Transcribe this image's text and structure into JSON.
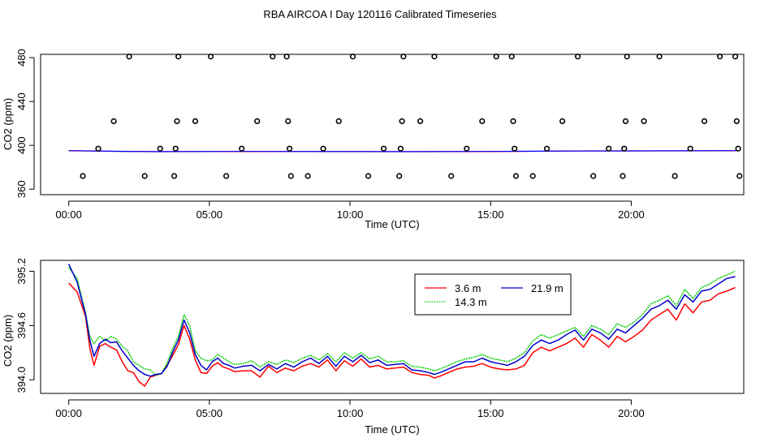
{
  "title": "RBA AIRCOA I  Day 120116  Calibrated Timeseries",
  "chart_data": [
    {
      "type": "scatter",
      "ylabel": "CO2 (ppm)",
      "xlabel": "Time (UTC)",
      "xlim": [
        -1,
        24
      ],
      "ylim": [
        355,
        483
      ],
      "yticks": [
        360,
        400,
        440,
        480
      ],
      "xticks": [
        0,
        5,
        10,
        15,
        20
      ],
      "xtick_labels": [
        "00:00",
        "05:00",
        "10:00",
        "15:00",
        "20:00"
      ],
      "cal_points": [
        {
          "x": 0.5,
          "y": 372
        },
        {
          "x": 1.05,
          "y": 397
        },
        {
          "x": 1.6,
          "y": 422
        },
        {
          "x": 2.15,
          "y": 481
        },
        {
          "x": 2.7,
          "y": 372
        },
        {
          "x": 3.25,
          "y": 397
        },
        {
          "x": 3.75,
          "y": 372
        },
        {
          "x": 3.8,
          "y": 397
        },
        {
          "x": 3.85,
          "y": 422
        },
        {
          "x": 3.9,
          "y": 481
        },
        {
          "x": 4.5,
          "y": 422
        },
        {
          "x": 5.05,
          "y": 481
        },
        {
          "x": 5.6,
          "y": 372
        },
        {
          "x": 6.15,
          "y": 397
        },
        {
          "x": 6.7,
          "y": 422
        },
        {
          "x": 7.25,
          "y": 481
        },
        {
          "x": 7.75,
          "y": 481
        },
        {
          "x": 7.8,
          "y": 422
        },
        {
          "x": 7.85,
          "y": 397
        },
        {
          "x": 7.9,
          "y": 372
        },
        {
          "x": 8.5,
          "y": 372
        },
        {
          "x": 9.05,
          "y": 397
        },
        {
          "x": 9.6,
          "y": 422
        },
        {
          "x": 10.1,
          "y": 481
        },
        {
          "x": 10.65,
          "y": 372
        },
        {
          "x": 11.2,
          "y": 397
        },
        {
          "x": 11.75,
          "y": 372
        },
        {
          "x": 11.8,
          "y": 397
        },
        {
          "x": 11.85,
          "y": 422
        },
        {
          "x": 11.9,
          "y": 481
        },
        {
          "x": 12.5,
          "y": 422
        },
        {
          "x": 13.0,
          "y": 481
        },
        {
          "x": 13.6,
          "y": 372
        },
        {
          "x": 14.15,
          "y": 397
        },
        {
          "x": 14.7,
          "y": 422
        },
        {
          "x": 15.2,
          "y": 481
        },
        {
          "x": 15.75,
          "y": 481
        },
        {
          "x": 15.8,
          "y": 422
        },
        {
          "x": 15.85,
          "y": 397
        },
        {
          "x": 15.9,
          "y": 372
        },
        {
          "x": 16.5,
          "y": 372
        },
        {
          "x": 17.0,
          "y": 397
        },
        {
          "x": 17.55,
          "y": 422
        },
        {
          "x": 18.1,
          "y": 481
        },
        {
          "x": 18.65,
          "y": 372
        },
        {
          "x": 19.2,
          "y": 397
        },
        {
          "x": 19.7,
          "y": 372
        },
        {
          "x": 19.75,
          "y": 397
        },
        {
          "x": 19.8,
          "y": 422
        },
        {
          "x": 19.85,
          "y": 481
        },
        {
          "x": 20.45,
          "y": 422
        },
        {
          "x": 21.0,
          "y": 481
        },
        {
          "x": 21.55,
          "y": 372
        },
        {
          "x": 22.1,
          "y": 397
        },
        {
          "x": 22.6,
          "y": 422
        },
        {
          "x": 23.15,
          "y": 481
        },
        {
          "x": 23.7,
          "y": 481
        },
        {
          "x": 23.75,
          "y": 422
        },
        {
          "x": 23.8,
          "y": 397
        },
        {
          "x": 23.85,
          "y": 372
        }
      ],
      "series": [
        {
          "name": "3.6 m",
          "color": "#ff0000",
          "x": [
            0,
            2,
            3,
            6,
            12,
            15,
            18,
            23.8
          ],
          "values": [
            395,
            394.4,
            394.2,
            394.3,
            394.2,
            394.3,
            394.8,
            395.0
          ]
        },
        {
          "name": "21.9 m",
          "color": "#0000ff",
          "x": [
            0,
            2,
            3,
            6,
            12,
            15,
            18,
            23.8
          ],
          "values": [
            395.2,
            394.5,
            394.3,
            394.4,
            394.3,
            394.4,
            394.9,
            395.2
          ]
        }
      ]
    },
    {
      "type": "line",
      "ylabel": "CO2 (ppm)",
      "xlabel": "Time (UTC)",
      "xlim": [
        -1,
        24
      ],
      "ylim": [
        393.85,
        395.32
      ],
      "yticks": [
        394.0,
        394.6,
        395.2
      ],
      "ytick_labels": [
        "394.0",
        "394.6",
        "395.2"
      ],
      "xticks": [
        0,
        5,
        10,
        15,
        20
      ],
      "xtick_labels": [
        "00:00",
        "05:00",
        "10:00",
        "15:00",
        "20:00"
      ],
      "legend_position": "top-right",
      "x": [
        0,
        0.3,
        0.6,
        0.75,
        0.9,
        1.1,
        1.3,
        1.5,
        1.7,
        1.9,
        2.1,
        2.3,
        2.5,
        2.7,
        2.9,
        3.1,
        3.3,
        3.5,
        3.7,
        3.9,
        4.1,
        4.3,
        4.5,
        4.7,
        4.9,
        5.1,
        5.3,
        5.5,
        5.7,
        5.9,
        6.2,
        6.5,
        6.8,
        7.1,
        7.4,
        7.7,
        8.0,
        8.3,
        8.6,
        8.9,
        9.2,
        9.5,
        9.8,
        10.1,
        10.4,
        10.7,
        11.0,
        11.3,
        11.6,
        11.9,
        12.2,
        12.5,
        12.8,
        13.0,
        13.2,
        13.5,
        13.8,
        14.1,
        14.4,
        14.7,
        15.0,
        15.3,
        15.6,
        15.9,
        16.2,
        16.5,
        16.8,
        17.1,
        17.4,
        17.7,
        18.0,
        18.3,
        18.6,
        18.9,
        19.2,
        19.5,
        19.8,
        20.1,
        20.4,
        20.7,
        21.0,
        21.3,
        21.6,
        21.9,
        22.2,
        22.5,
        22.8,
        23.1,
        23.4,
        23.7
      ],
      "series": [
        {
          "name": "3.6 m",
          "color": "#ff0000",
          "values": [
            395.07,
            394.97,
            394.7,
            394.35,
            394.16,
            394.37,
            394.4,
            394.36,
            394.33,
            394.2,
            394.1,
            394.08,
            393.98,
            393.93,
            394.03,
            394.05,
            394.07,
            394.16,
            394.27,
            394.39,
            394.6,
            394.45,
            394.22,
            394.08,
            394.07,
            394.15,
            394.19,
            394.14,
            394.12,
            394.09,
            394.1,
            394.1,
            394.03,
            394.15,
            394.08,
            394.13,
            394.1,
            394.15,
            394.18,
            394.14,
            394.22,
            394.1,
            394.21,
            394.15,
            394.23,
            394.14,
            394.16,
            394.12,
            394.13,
            394.14,
            394.08,
            394.06,
            394.05,
            394.02,
            394.04,
            394.08,
            394.12,
            394.14,
            394.15,
            394.18,
            394.14,
            394.12,
            394.11,
            394.12,
            394.16,
            394.3,
            394.36,
            394.32,
            394.36,
            394.4,
            394.46,
            394.36,
            394.5,
            394.44,
            394.36,
            394.48,
            394.42,
            394.48,
            394.55,
            394.66,
            394.72,
            394.78,
            394.66,
            394.84,
            394.74,
            394.86,
            394.88,
            394.95,
            394.98,
            395.02
          ]
        },
        {
          "name": "14.3 m",
          "color": "#00cc00",
          "values": [
            395.24,
            395.12,
            394.74,
            394.48,
            394.4,
            394.48,
            394.43,
            394.48,
            394.45,
            394.37,
            394.32,
            394.2,
            394.16,
            394.12,
            394.11,
            394.05,
            394.07,
            394.19,
            394.35,
            394.48,
            394.72,
            394.6,
            394.32,
            394.24,
            394.21,
            394.22,
            394.28,
            394.24,
            394.2,
            394.17,
            394.18,
            394.21,
            394.14,
            394.2,
            394.17,
            394.22,
            394.19,
            394.24,
            394.27,
            394.22,
            394.29,
            394.2,
            394.3,
            394.24,
            394.3,
            394.23,
            394.26,
            394.2,
            394.2,
            394.21,
            394.15,
            394.14,
            394.12,
            394.1,
            394.12,
            394.16,
            394.2,
            394.23,
            394.25,
            394.28,
            394.24,
            394.22,
            394.2,
            394.24,
            394.3,
            394.43,
            394.5,
            394.46,
            394.5,
            394.54,
            394.58,
            394.48,
            394.6,
            394.56,
            394.5,
            394.62,
            394.58,
            394.64,
            394.72,
            394.84,
            394.88,
            394.93,
            394.82,
            395.0,
            394.9,
            395.02,
            395.06,
            395.12,
            395.16,
            395.2
          ]
        },
        {
          "name": "21.9 m",
          "color": "#0000cc",
          "values": [
            395.28,
            395.08,
            394.72,
            394.44,
            394.26,
            394.4,
            394.45,
            394.41,
            394.42,
            394.32,
            394.24,
            394.16,
            394.1,
            394.06,
            394.04,
            394.06,
            394.07,
            394.15,
            394.31,
            394.44,
            394.66,
            394.52,
            394.28,
            394.16,
            394.11,
            394.2,
            394.24,
            394.18,
            394.16,
            394.13,
            394.15,
            394.16,
            394.1,
            394.17,
            394.12,
            394.18,
            394.14,
            394.2,
            394.24,
            394.18,
            394.26,
            394.15,
            394.26,
            394.2,
            394.27,
            394.19,
            394.22,
            394.16,
            394.17,
            394.18,
            394.11,
            394.1,
            394.08,
            394.06,
            394.08,
            394.12,
            394.16,
            394.2,
            394.2,
            394.24,
            394.2,
            394.18,
            394.16,
            394.2,
            394.26,
            394.38,
            394.44,
            394.4,
            394.44,
            394.5,
            394.55,
            394.44,
            394.56,
            394.52,
            394.45,
            394.56,
            394.52,
            394.6,
            394.68,
            394.78,
            394.82,
            394.88,
            394.78,
            394.94,
            394.86,
            394.98,
            395.0,
            395.06,
            395.12,
            395.14
          ]
        }
      ]
    }
  ]
}
